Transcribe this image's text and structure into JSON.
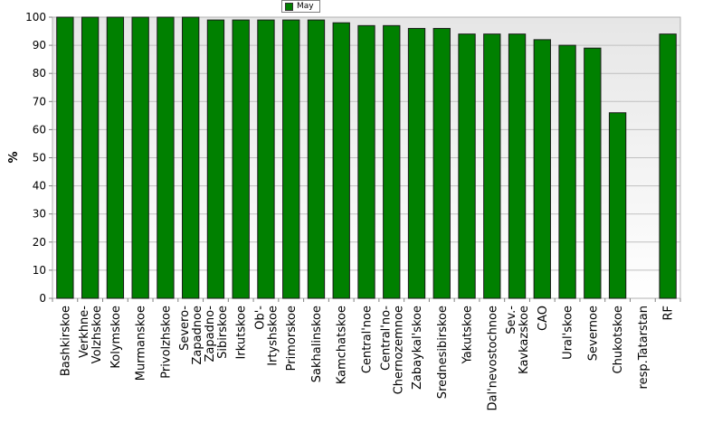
{
  "chart_data": {
    "type": "bar",
    "ylabel": "%",
    "ylim": [
      0,
      100
    ],
    "yticks": [
      0,
      10,
      20,
      30,
      40,
      50,
      60,
      70,
      80,
      90,
      100
    ],
    "grid": true,
    "legend_position": "top-center",
    "categories": [
      [
        "Bashkirskoe"
      ],
      [
        "Verkhne-",
        "Volzhskoe"
      ],
      [
        "Kolymskoe"
      ],
      [
        "Murmanskoe"
      ],
      [
        "Privolzhskoe"
      ],
      [
        "Severo-",
        "Zapadnoe"
      ],
      [
        "Zapadno-",
        "Sibirskoe"
      ],
      [
        "Irkutskoe"
      ],
      [
        "Ob'-",
        "Irtyshskoe"
      ],
      [
        "Primorskoe"
      ],
      [
        "Sakhalinskoe"
      ],
      [
        "Kamchatskoe"
      ],
      [
        "Central'noe"
      ],
      [
        "Central'no-",
        "Chernozemnoe"
      ],
      [
        "Zabaykal'skoe"
      ],
      [
        "Srednesibirskoe"
      ],
      [
        "Yakutskoe"
      ],
      [
        "Dal'nevostochnoe"
      ],
      [
        "Sev.-",
        "Kavkazskoe"
      ],
      [
        "CAO"
      ],
      [
        "Ural'skoe"
      ],
      [
        "Severnoe"
      ],
      [
        "Chukotskoe"
      ],
      [
        "resp.Tatarstan"
      ],
      [
        "RF"
      ]
    ],
    "series": [
      {
        "name": "May",
        "color": "#008000",
        "values": [
          100,
          100,
          100,
          100,
          100,
          100,
          99,
          99,
          99,
          99,
          99,
          98,
          97,
          97,
          96,
          96,
          94,
          94,
          94,
          92,
          90,
          89,
          66,
          null,
          94
        ]
      }
    ]
  }
}
